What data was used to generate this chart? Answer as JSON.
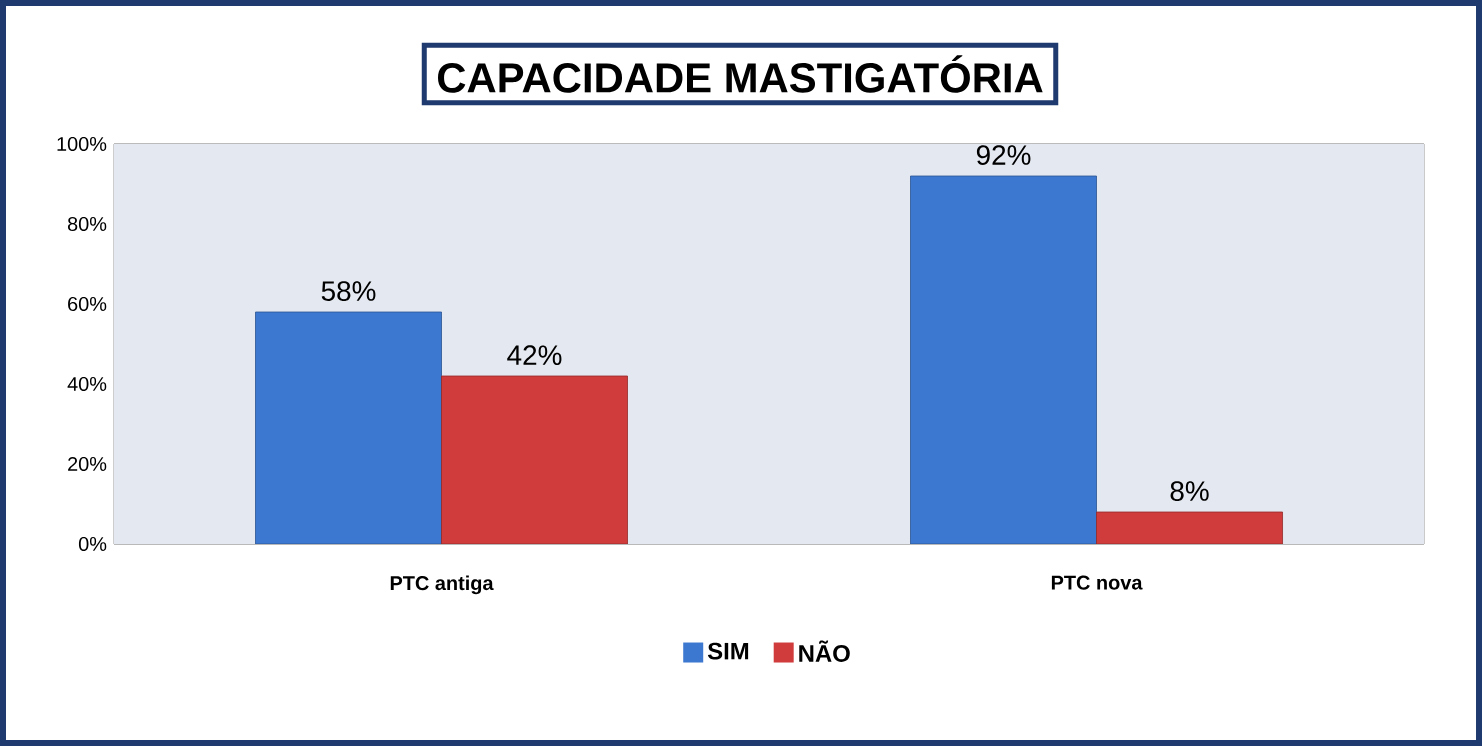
{
  "chart_data": {
    "type": "bar",
    "title": "CAPACIDADE MASTIGATÓRIA",
    "categories": [
      "PTC antiga",
      "PTC nova"
    ],
    "series": [
      {
        "name": "SIM",
        "color": "#3c78d0",
        "values": [
          58,
          92
        ],
        "value_labels": [
          "58%",
          "92%"
        ]
      },
      {
        "name": "NÃO",
        "color": "#d03c3c",
        "values": [
          42,
          8
        ],
        "value_labels": [
          "42%",
          "8%"
        ]
      }
    ],
    "ylim": [
      0,
      100
    ],
    "yticks": [
      {
        "value": 0,
        "label": "0%"
      },
      {
        "value": 20,
        "label": "20%"
      },
      {
        "value": 40,
        "label": "40%"
      },
      {
        "value": 60,
        "label": "60%"
      },
      {
        "value": 80,
        "label": "80%"
      },
      {
        "value": 100,
        "label": "100%"
      }
    ],
    "grid": "y",
    "legend": "bottom"
  }
}
